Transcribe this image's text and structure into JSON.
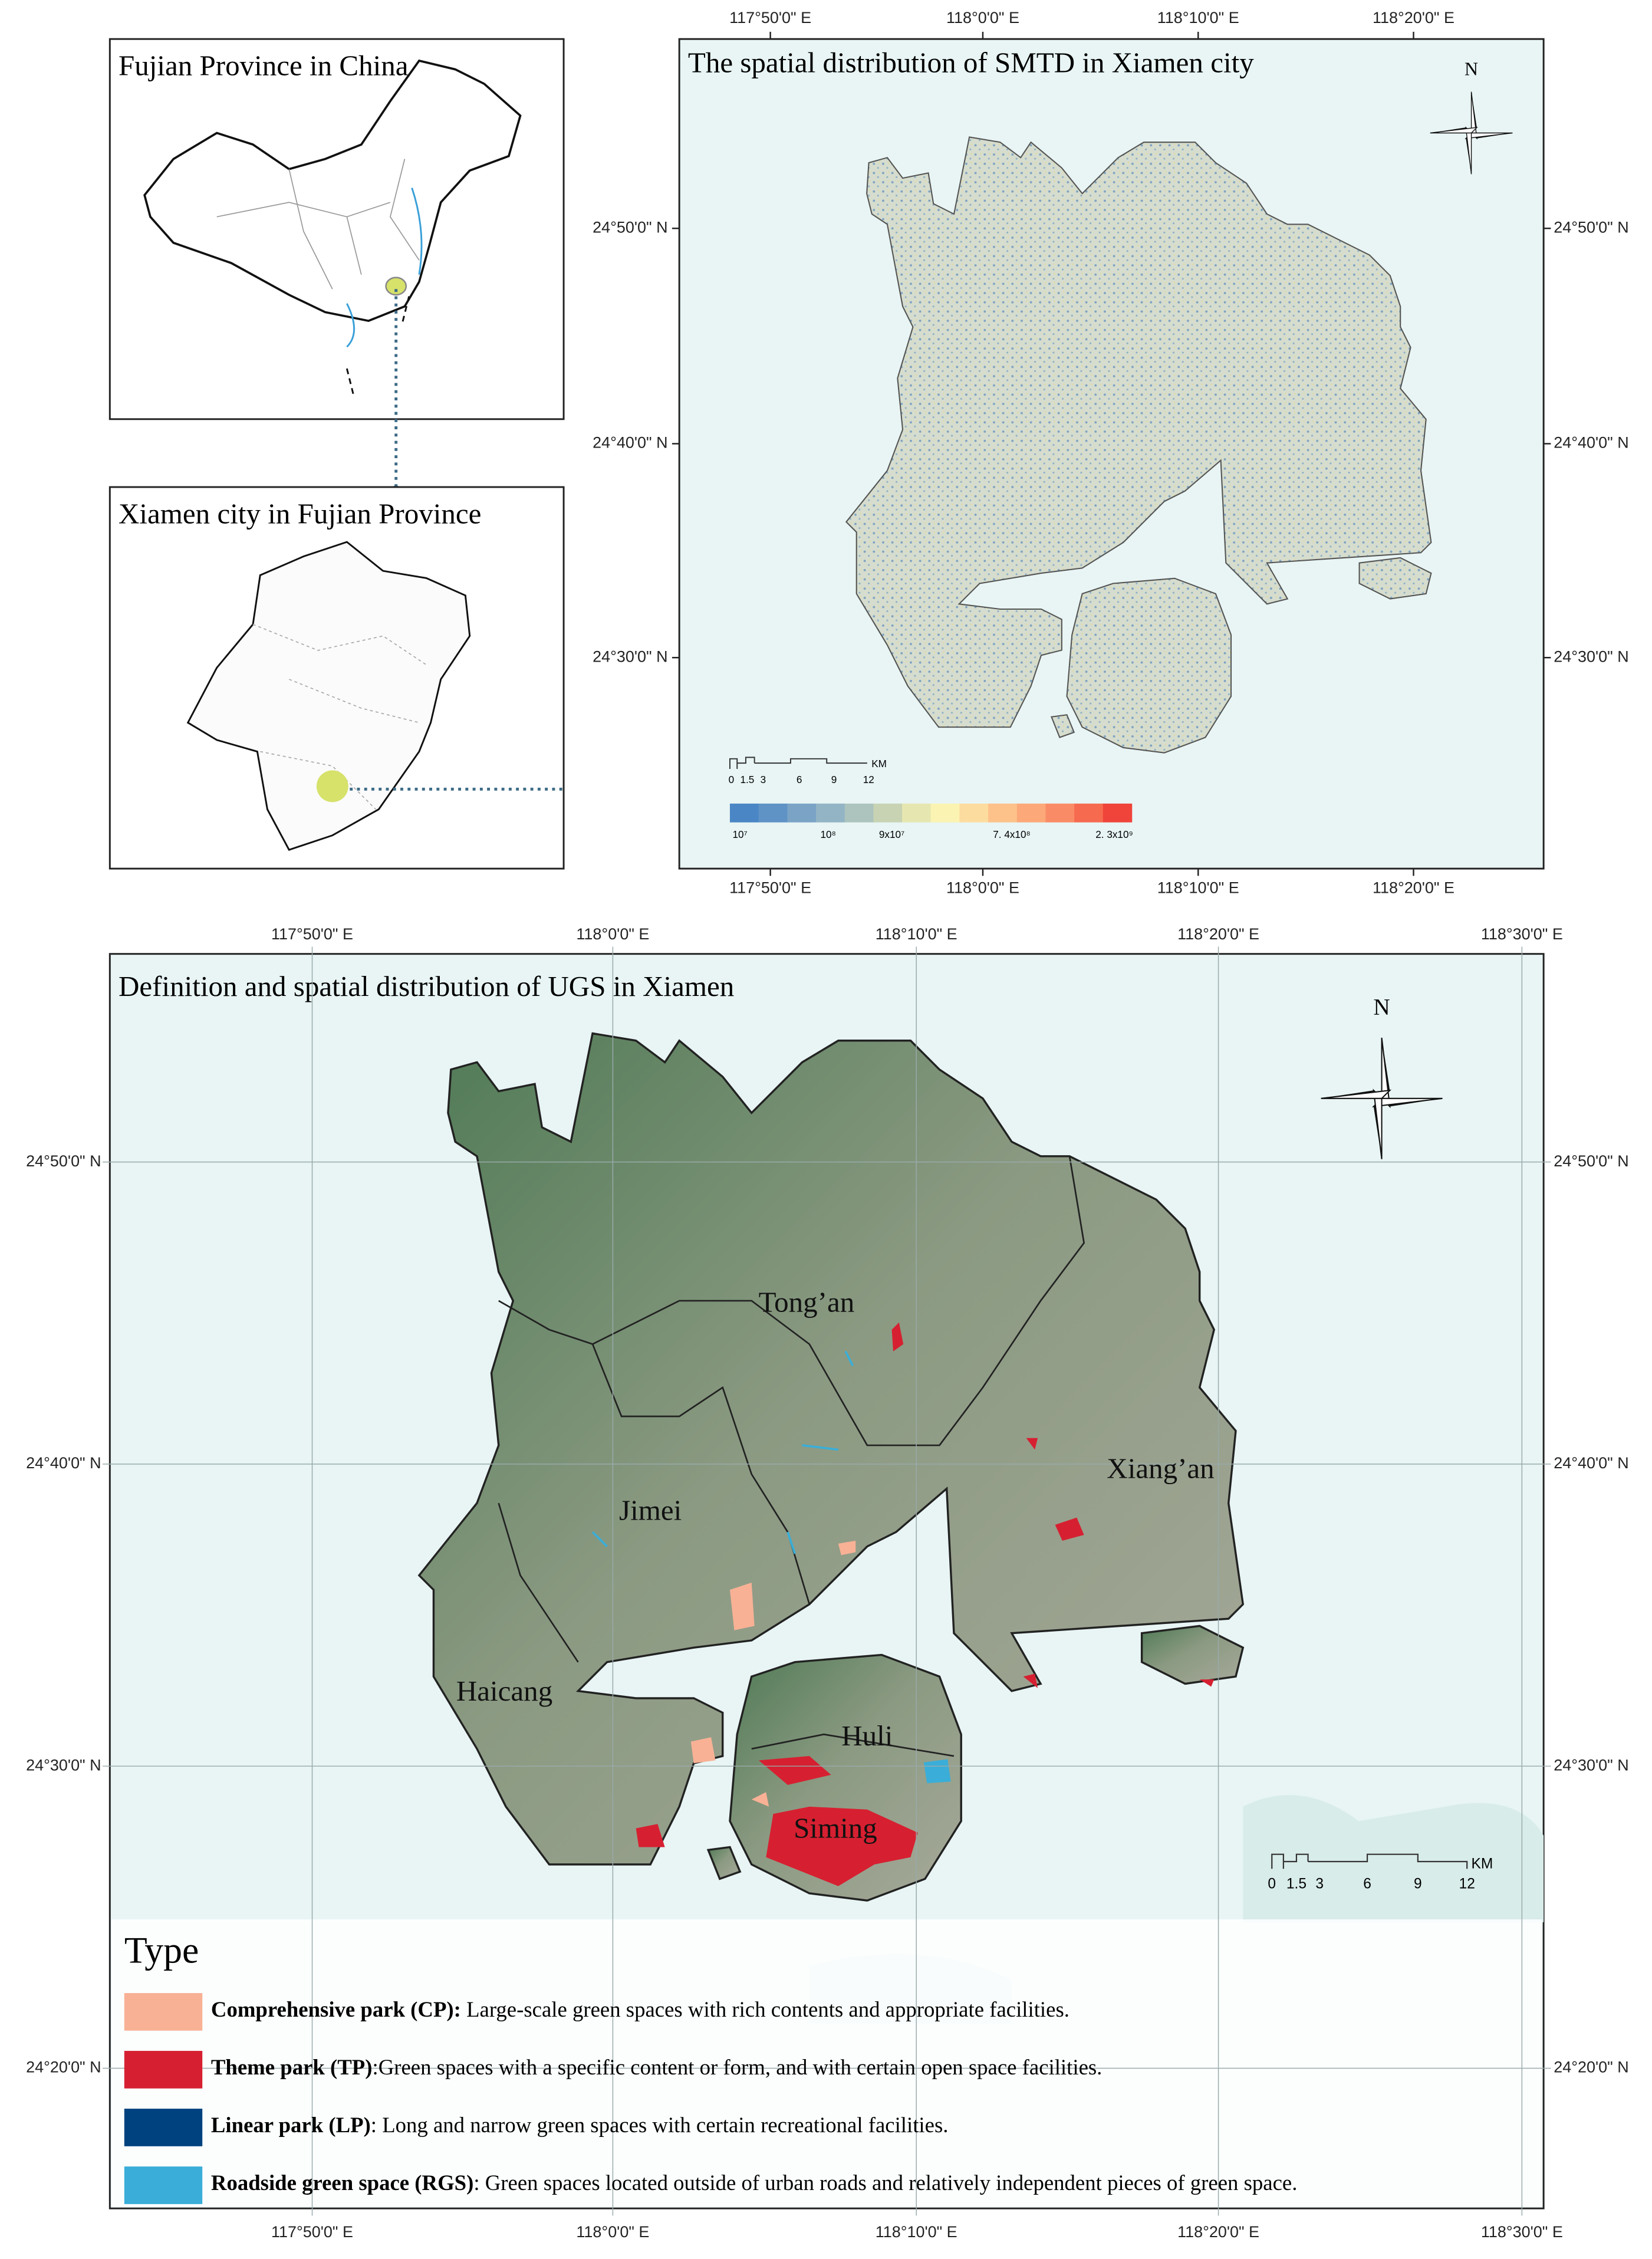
{
  "inset_china": {
    "title": "Fujian Province in China"
  },
  "inset_fujian": {
    "title": "Xiamen city in Fujian Province"
  },
  "smtd_map": {
    "title": "The spatial distribution of SMTD in Xiamen city",
    "north": "N",
    "lon_labels": [
      "117°50'0\" E",
      "118°0'0\" E",
      "118°10'0\" E",
      "118°20'0\" E"
    ],
    "lat_labels": [
      "24°50'0\" N",
      "24°40'0\" N",
      "24°30'0\" N"
    ],
    "scale_labels": [
      "0",
      "1.5",
      "3",
      "6",
      "9",
      "12"
    ],
    "scale_unit": "KM",
    "colorbar": {
      "colors": [
        "#4a86c5",
        "#5f93c6",
        "#7aa3c6",
        "#93b4c4",
        "#adc3bd",
        "#c8d3b4",
        "#e6e7b0",
        "#fbf3b1",
        "#fddca0",
        "#fdc28a",
        "#fca878",
        "#f98c66",
        "#f66a4f",
        "#f0443a"
      ],
      "labels": [
        "10⁷",
        "10⁸",
        "9x10⁷",
        "7. 4x10⁸",
        "2. 3x10⁹"
      ]
    }
  },
  "ugs_map": {
    "title": "Definition and spatial distribution of UGS in Xiamen",
    "north": "N",
    "lon_labels": [
      "117°50'0\" E",
      "118°0'0\" E",
      "118°10'0\" E",
      "118°20'0\" E",
      "118°30'0\" E"
    ],
    "lat_labels": [
      "24°50'0\" N",
      "24°40'0\" N",
      "24°30'0\" N",
      "24°20'0\" N"
    ],
    "districts": [
      "Tong’an",
      "Xiang’an",
      "Jimei",
      "Haicang",
      "Huli",
      "Siming"
    ],
    "scale_labels": [
      "0",
      "1.5",
      "3",
      "6",
      "9",
      "12"
    ],
    "scale_unit": "KM",
    "legend": {
      "title": "Type",
      "items": [
        {
          "name": "Comprehensive park (CP):",
          "description": " Large-scale green spaces with rich contents and appropriate facilities.",
          "color": "#f8b195"
        },
        {
          "name": "Theme park (TP)",
          "description": ":Green spaces with a specific content or form, and with certain open space facilities.",
          "color": "#d62031"
        },
        {
          "name": "Linear park (LP)",
          "description": ": Long and narrow green spaces with certain recreational facilities.",
          "color": "#00427f"
        },
        {
          "name": "Roadside green space (RGS)",
          "description": ": Green spaces located outside of urban roads and relatively independent pieces of green space.",
          "color": "#3aaed8"
        }
      ]
    }
  }
}
